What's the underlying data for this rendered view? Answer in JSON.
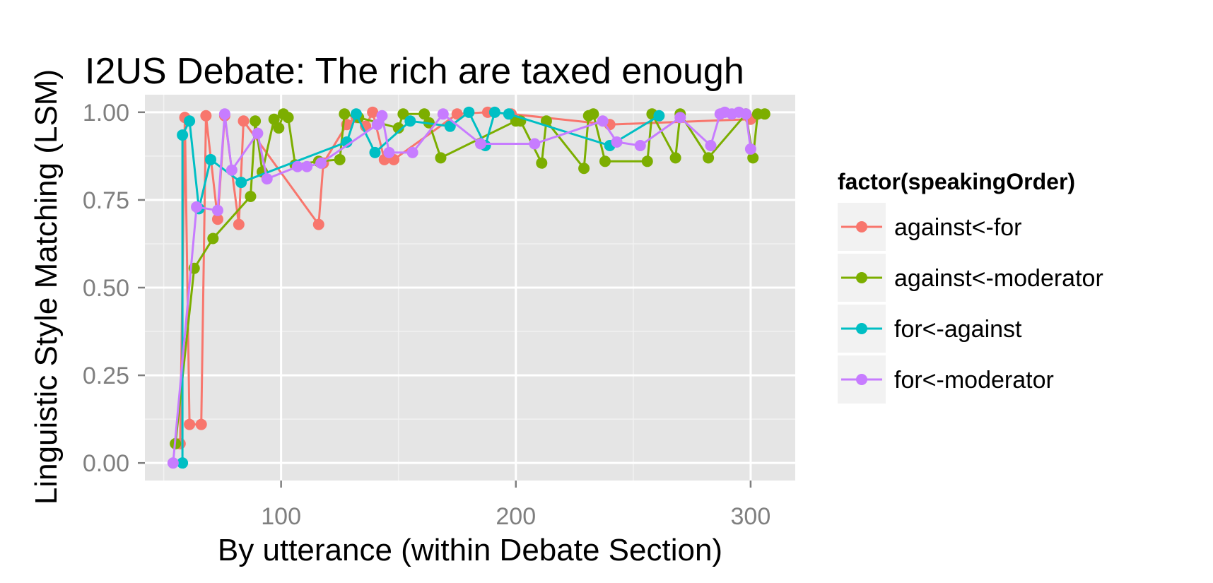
{
  "chart_data": {
    "type": "line",
    "title": "I2US Debate: The rich are taxed enough",
    "xlabel": "By utterance (within Debate Section)",
    "ylabel": "Linguistic Style Matching (LSM)",
    "xlim": [
      42,
      319
    ],
    "ylim": [
      -0.05,
      1.05
    ],
    "x_ticks": [
      100,
      200,
      300
    ],
    "x_tick_labels": [
      "100",
      "200",
      "300"
    ],
    "y_ticks": [
      0,
      0.25,
      0.5,
      0.75,
      1.0
    ],
    "y_tick_labels": [
      "0.00",
      "0.25",
      "0.50",
      "0.75",
      "1.00"
    ],
    "grid": true,
    "legend": {
      "title": "factor(speakingOrder)",
      "position": "right"
    },
    "series": [
      {
        "name": "against<-for",
        "color": "#F8766D",
        "points": [
          [
            57,
            0.055
          ],
          [
            59,
            0.985
          ],
          [
            61,
            0.11
          ],
          [
            66,
            0.11
          ],
          [
            68,
            0.99
          ],
          [
            73,
            0.695
          ],
          [
            76,
            0.99
          ],
          [
            82,
            0.68
          ],
          [
            84,
            0.975
          ],
          [
            116,
            0.68
          ],
          [
            118,
            0.855
          ],
          [
            128,
            0.965
          ],
          [
            132,
            0.985
          ],
          [
            136,
            0.96
          ],
          [
            139,
            1.0
          ],
          [
            144,
            0.865
          ],
          [
            148,
            0.865
          ],
          [
            175,
            0.995
          ],
          [
            188,
            1.0
          ],
          [
            198,
            0.995
          ],
          [
            240,
            0.965
          ],
          [
            300,
            0.98
          ]
        ]
      },
      {
        "name": "against<-moderator",
        "color": "#7CAE00",
        "points": [
          [
            55,
            0.055
          ],
          [
            63,
            0.555
          ],
          [
            71,
            0.64
          ],
          [
            87,
            0.76
          ],
          [
            89,
            0.975
          ],
          [
            92,
            0.83
          ],
          [
            97,
            0.98
          ],
          [
            99,
            0.955
          ],
          [
            101,
            0.995
          ],
          [
            103,
            0.985
          ],
          [
            106,
            0.85
          ],
          [
            116,
            0.86
          ],
          [
            125,
            0.865
          ],
          [
            127,
            0.995
          ],
          [
            133,
            0.985
          ],
          [
            150,
            0.955
          ],
          [
            152,
            0.995
          ],
          [
            161,
            0.995
          ],
          [
            163,
            0.97
          ],
          [
            168,
            0.87
          ],
          [
            200,
            0.975
          ],
          [
            202,
            0.975
          ],
          [
            211,
            0.855
          ],
          [
            213,
            0.975
          ],
          [
            229,
            0.84
          ],
          [
            231,
            0.99
          ],
          [
            233,
            0.995
          ],
          [
            238,
            0.86
          ],
          [
            256,
            0.86
          ],
          [
            258,
            0.995
          ],
          [
            268,
            0.87
          ],
          [
            270,
            0.995
          ],
          [
            282,
            0.87
          ],
          [
            298,
            0.995
          ],
          [
            301,
            0.87
          ],
          [
            303,
            0.995
          ],
          [
            306,
            0.995
          ]
        ]
      },
      {
        "name": "for<-against",
        "color": "#00BFC4",
        "points": [
          [
            58,
            0.0
          ],
          [
            58,
            0.935
          ],
          [
            61,
            0.975
          ],
          [
            65,
            0.725
          ],
          [
            70,
            0.865
          ],
          [
            83,
            0.8
          ],
          [
            128,
            0.915
          ],
          [
            132,
            0.995
          ],
          [
            140,
            0.885
          ],
          [
            155,
            0.975
          ],
          [
            172,
            0.96
          ],
          [
            180,
            1.0
          ],
          [
            187,
            0.905
          ],
          [
            191,
            1.0
          ],
          [
            197,
            0.995
          ],
          [
            240,
            0.905
          ],
          [
            261,
            0.99
          ]
        ]
      },
      {
        "name": "for<-moderator",
        "color": "#C77CFF",
        "points": [
          [
            54,
            0.0
          ],
          [
            64,
            0.73
          ],
          [
            73,
            0.72
          ],
          [
            76,
            0.995
          ],
          [
            79,
            0.835
          ],
          [
            90,
            0.94
          ],
          [
            94,
            0.81
          ],
          [
            107,
            0.845
          ],
          [
            111,
            0.845
          ],
          [
            117,
            0.855
          ],
          [
            141,
            0.965
          ],
          [
            143,
            0.99
          ],
          [
            146,
            0.885
          ],
          [
            156,
            0.885
          ],
          [
            169,
            0.995
          ],
          [
            185,
            0.91
          ],
          [
            208,
            0.91
          ],
          [
            237,
            0.975
          ],
          [
            243,
            0.915
          ],
          [
            253,
            0.905
          ],
          [
            270,
            0.985
          ],
          [
            283,
            0.905
          ],
          [
            287,
            0.995
          ],
          [
            289,
            1.0
          ],
          [
            292,
            0.995
          ],
          [
            295,
            1.0
          ],
          [
            298,
            0.995
          ],
          [
            300,
            0.895
          ]
        ]
      }
    ]
  }
}
